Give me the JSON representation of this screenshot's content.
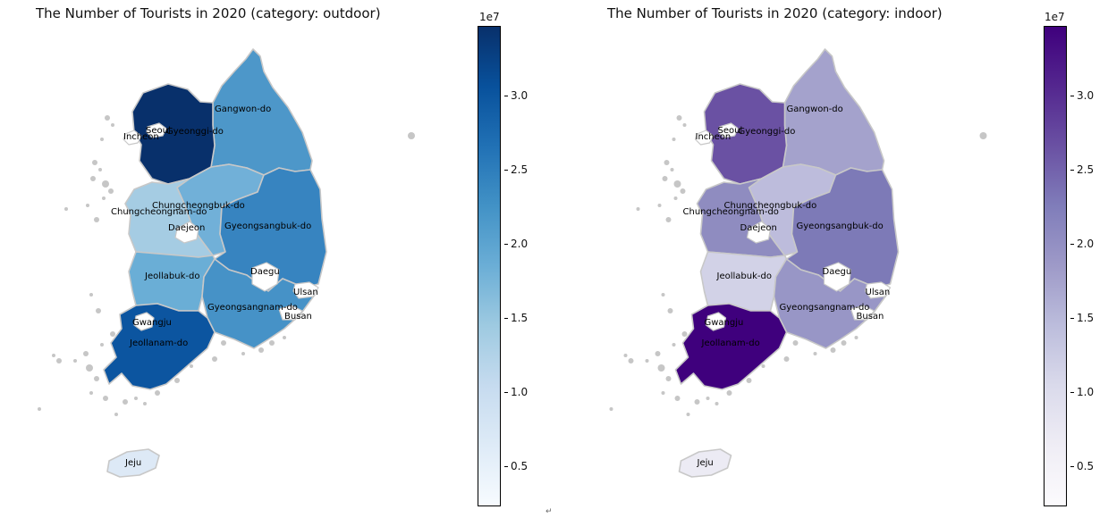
{
  "maps": [
    {
      "title": "The Number of Tourists in 2020 (category: outdoor)",
      "colormap": "Blues",
      "colors": {
        "Gyeonggi-do": "#08306b",
        "Gangwon-do": "#4d97c9",
        "Chungcheongbuk-do": "#71b0d8",
        "Chungcheongnam-do": "#a5cce3",
        "Gyeongsangbuk-do": "#3784c0",
        "Jeollabuk-do": "#6aaed6",
        "Gyeongsangnam-do": "#4692c7",
        "Jeollanam-do": "#0c55a0",
        "Jeju": "#dde9f6",
        "Seoul": "#ffffff",
        "Incheon": "#ffffff",
        "Daejeon": "#ffffff",
        "Daegu": "#ffffff",
        "Gwangju": "#ffffff",
        "Ulsan": "#ffffff",
        "Busan": "#ffffff"
      },
      "colorbar": {
        "exponent_label": "1e7",
        "ticks": [
          "0.5",
          "1.0",
          "1.5",
          "2.0",
          "2.5",
          "3.0"
        ],
        "gradient": [
          "#f7fbff",
          "#deebf7",
          "#c6dbef",
          "#9ecae1",
          "#6baed6",
          "#4292c6",
          "#2171b5",
          "#08519c",
          "#08306b"
        ]
      }
    },
    {
      "title": "The Number of Tourists in 2020 (category: indoor)",
      "colormap": "Purples",
      "colors": {
        "Gyeonggi-do": "#6a51a3",
        "Gangwon-do": "#a4a2cc",
        "Chungcheongbuk-do": "#bdbcdc",
        "Chungcheongnam-do": "#8f8cc0",
        "Gyeongsangbuk-do": "#7d7ab7",
        "Jeollabuk-do": "#d2d2e7",
        "Gyeongsangnam-do": "#9896c6",
        "Jeollanam-do": "#3f007d",
        "Jeju": "#ecebf4",
        "Seoul": "#ffffff",
        "Incheon": "#ffffff",
        "Daejeon": "#ffffff",
        "Daegu": "#ffffff",
        "Gwangju": "#ffffff",
        "Ulsan": "#ffffff",
        "Busan": "#ffffff"
      },
      "colorbar": {
        "exponent_label": "1e7",
        "ticks": [
          "0.5",
          "1.0",
          "1.5",
          "2.0",
          "2.5",
          "3.0"
        ],
        "gradient": [
          "#fcfbfd",
          "#efedf5",
          "#dadaeb",
          "#bcbddc",
          "#9e9ac8",
          "#807dba",
          "#6a51a3",
          "#54278f",
          "#3f007d"
        ]
      }
    }
  ],
  "region_labels": [
    "Gangwon-do",
    "Seoul",
    "Gyeonggi-do",
    "Incheon",
    "Chungcheongbuk-do",
    "Chungcheongnam-do",
    "Daejeon",
    "Gyeongsangbuk-do",
    "Daegu",
    "Jeollabuk-do",
    "Ulsan",
    "Gyeongsangnam-do",
    "Busan",
    "Gwangju",
    "Jeollanam-do",
    "Jeju"
  ],
  "footer_glyph": "↵"
}
